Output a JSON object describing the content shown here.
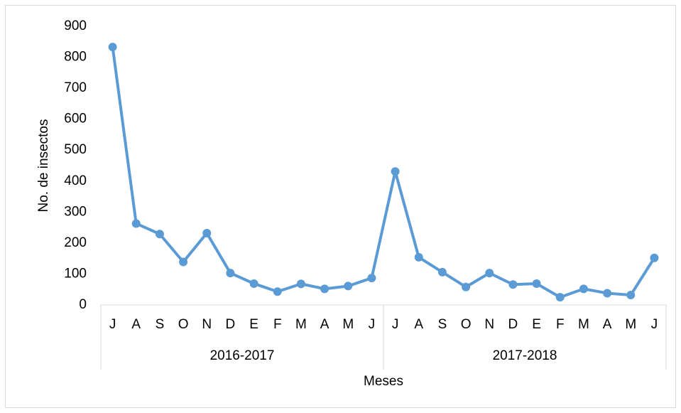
{
  "chart_data": {
    "type": "line",
    "ylabel": "No. de insectos",
    "xlabel": "Meses",
    "groups": [
      {
        "label": "2016-2017",
        "categories": [
          "J",
          "A",
          "S",
          "O",
          "N",
          "D",
          "E",
          "F",
          "M",
          "A",
          "M",
          "J"
        ]
      },
      {
        "label": "2017-2018",
        "categories": [
          "J",
          "A",
          "S",
          "O",
          "N",
          "D",
          "E",
          "F",
          "M",
          "A",
          "M",
          "J"
        ]
      }
    ],
    "series": [
      {
        "name": "No. de insectos",
        "color": "#5b9bd5",
        "values": [
          833,
          263,
          229,
          139,
          232,
          103,
          69,
          43,
          68,
          52,
          61,
          87,
          431,
          154,
          106,
          58,
          103,
          66,
          69,
          25,
          52,
          38,
          32,
          152
        ]
      }
    ],
    "ylim": [
      0,
      900
    ],
    "yticks": [
      0,
      100,
      200,
      300,
      400,
      500,
      600,
      700,
      800,
      900
    ],
    "grid": false
  }
}
